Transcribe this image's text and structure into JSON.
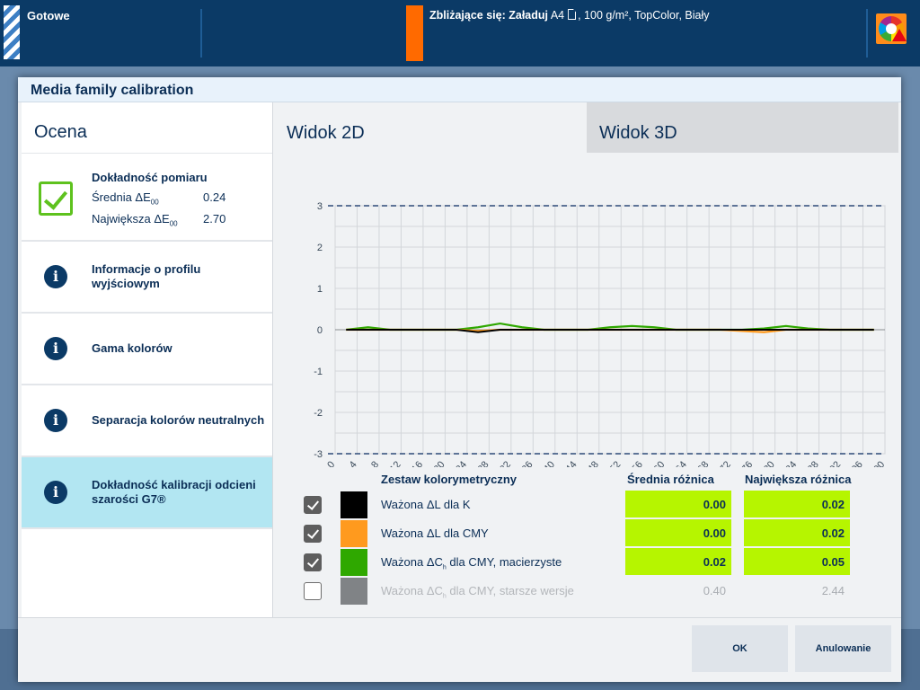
{
  "topbar": {
    "status": "Gotowe",
    "upcoming_label": "Zbliżające się:",
    "upcoming_action": "Załaduj",
    "paper_size": "A4",
    "paper_details": ", 100 g/m², TopColor, Biały"
  },
  "dialog": {
    "title": "Media family calibration",
    "left": {
      "heading": "Ocena",
      "accuracy": {
        "title": "Dokładność pomiaru",
        "avg_label": "Średnia ΔE",
        "avg_sub": "00",
        "avg_value": "0.24",
        "max_label": "Największa ΔE",
        "max_sub": "00",
        "max_value": "2.70"
      },
      "items": [
        {
          "label": "Informacje o profilu wyjściowym"
        },
        {
          "label": "Gama kolorów"
        },
        {
          "label": "Separacja kolorów neutralnych"
        },
        {
          "label": "Dokładność kalibracji odcieni szarości G7®"
        }
      ]
    },
    "tabs": [
      {
        "label": "Widok 2D"
      },
      {
        "label": "Widok 3D"
      }
    ],
    "table": {
      "col_set": "Zestaw kolorymetryczny",
      "col_avg": "Średnia różnica",
      "col_max": "Największa różnica",
      "rows": [
        {
          "name": "Ważona ΔL dla K",
          "sub": "",
          "name_rest": "",
          "avg": "0.00",
          "max": "0.02",
          "checked": true,
          "color": "#000000"
        },
        {
          "name": "Ważona ΔL dla CMY",
          "sub": "",
          "name_rest": "",
          "avg": "0.00",
          "max": "0.02",
          "checked": true,
          "color": "#ff9a1e"
        },
        {
          "name": "Ważona ΔC",
          "sub": "h",
          "name_rest": " dla CMY, macierzyste",
          "avg": "0.02",
          "max": "0.05",
          "checked": true,
          "color": "#2fa800"
        },
        {
          "name": "Ważona ΔC",
          "sub": "h",
          "name_rest": " dla CMY, starsze wersje",
          "avg": "0.40",
          "max": "2.44",
          "checked": false,
          "color": "#808386"
        }
      ]
    },
    "buttons": {
      "ok": "OK",
      "cancel": "Anulowanie"
    }
  },
  "chart_data": {
    "type": "line",
    "title": "",
    "xlabel": "",
    "ylabel": "",
    "xlim": [
      0,
      100
    ],
    "ylim": [
      -3,
      3
    ],
    "x_ticks": [
      "0",
      "4",
      "8",
      "12",
      "16",
      "20",
      "24",
      "28",
      "32",
      "36",
      "40",
      "44",
      "48",
      "52",
      "56",
      "60",
      "64",
      "68",
      "72",
      "76",
      "80",
      "84",
      "88",
      "92",
      "96",
      "100"
    ],
    "y_ticks": [
      "3",
      "2",
      "1",
      "0",
      "-1",
      "-2",
      "-3"
    ],
    "tolerance_lines": [
      3,
      -3
    ],
    "grid": true,
    "series": [
      {
        "color": "#2fa800",
        "x": [
          2,
          6,
          10,
          14,
          18,
          22,
          26,
          30,
          34,
          38,
          42,
          46,
          50,
          54,
          58,
          62,
          66,
          70,
          74,
          78,
          82,
          86,
          90,
          94,
          98
        ],
        "y": [
          0,
          0.02,
          0,
          0,
          0,
          0,
          0.02,
          0.05,
          0.02,
          0,
          0,
          0,
          0.02,
          0.03,
          0.02,
          0,
          0,
          0,
          0,
          0.01,
          0.03,
          0.01,
          0,
          0,
          0
        ]
      },
      {
        "color": "#ff9a1e",
        "x": [
          2,
          6,
          10,
          14,
          18,
          22,
          26,
          30,
          34,
          38,
          42,
          46,
          50,
          54,
          58,
          62,
          66,
          70,
          74,
          78,
          82,
          86,
          90,
          94,
          98
        ],
        "y": [
          0,
          0,
          0,
          0,
          0,
          0,
          -0.01,
          0,
          0,
          0,
          0,
          0,
          0,
          0,
          0,
          0,
          0,
          0,
          -0.01,
          -0.02,
          0,
          0,
          0,
          0,
          0
        ]
      },
      {
        "color": "#000000",
        "x": [
          2,
          6,
          10,
          14,
          18,
          22,
          26,
          30,
          34,
          38,
          42,
          46,
          50,
          54,
          58,
          62,
          66,
          70,
          74,
          78,
          82,
          86,
          90,
          94,
          98
        ],
        "y": [
          0,
          0,
          0,
          0,
          0,
          0,
          -0.02,
          0,
          0,
          0,
          0,
          0,
          0,
          0,
          0,
          0,
          0,
          0,
          0,
          0,
          0,
          0,
          0,
          0,
          0
        ]
      }
    ]
  }
}
